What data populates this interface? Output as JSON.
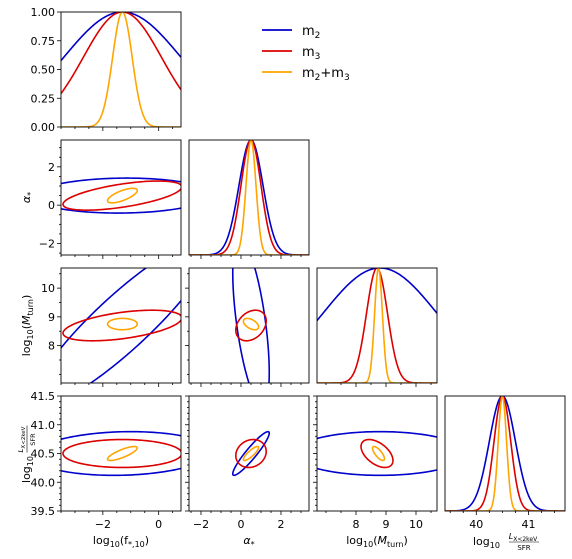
{
  "chart_data": {
    "type": "corner",
    "parameters": [
      {
        "key": "fstar",
        "label": "log10(f*,10)",
        "range": [
          -3.5,
          0.8
        ],
        "ticks": [
          -2,
          0
        ],
        "tick_labels": [
          "−2",
          "0"
        ]
      },
      {
        "key": "alpha",
        "label": "α*",
        "range": [
          -2.6,
          3.4
        ],
        "ticks": [
          -2,
          0,
          2
        ],
        "tick_labels": [
          "−2",
          "0",
          "2"
        ]
      },
      {
        "key": "mturn",
        "label": "log10(Mturn)",
        "range": [
          6.7,
          10.7
        ],
        "ticks": [
          8,
          9,
          10
        ],
        "tick_labels": [
          "8",
          "9",
          "10"
        ]
      },
      {
        "key": "lx",
        "label": "log10 LX<2keV/SFR",
        "range": [
          39.5,
          41.5
        ],
        "ticks": [
          39.5,
          40.0,
          40.5,
          41.0,
          41.5
        ],
        "tick_labels": [
          "39.5",
          "40.0",
          "40.5",
          "41.0",
          "41.5"
        ],
        "x_ticks": [
          40,
          41
        ],
        "x_tick_labels": [
          "40",
          "41"
        ],
        "x_range": [
          39.4,
          41.7
        ]
      }
    ],
    "diag_ylabels": {
      "ticks": [
        0.0,
        0.25,
        0.5,
        0.75,
        1.0
      ],
      "tick_labels": [
        "0.00",
        "0.25",
        "0.50",
        "0.75",
        "1.00"
      ]
    },
    "legend": {
      "position": "top-right",
      "entries": [
        {
          "name": "m2",
          "base": "m",
          "sub": "2"
        },
        {
          "name": "m3",
          "base": "m",
          "sub": "3"
        },
        {
          "name": "m2+m3",
          "base": "m",
          "sub": "2+m",
          "sub2": "3"
        }
      ]
    },
    "series": [
      {
        "name": "m2",
        "color": "#0000cc",
        "mean": {
          "fstar": -1.3,
          "alpha": 0.5,
          "mturn": 8.8,
          "lx": 40.5
        },
        "sigma": {
          "fstar": 2.1,
          "alpha": 0.6,
          "mturn": 1.9,
          "lx": 0.25
        },
        "corr": {
          "fstar-alpha": 0.05,
          "fstar-mturn": 0.9,
          "fstar-lx": 0.1,
          "alpha-mturn": -0.6,
          "alpha-lx": 0.93,
          "mturn-lx": 0.0
        }
      },
      {
        "name": "m3",
        "color": "#dd0000",
        "mean": {
          "fstar": -1.3,
          "alpha": 0.5,
          "mturn": 8.7,
          "lx": 40.5
        },
        "sigma": {
          "fstar": 1.4,
          "alpha": 0.5,
          "mturn": 0.35,
          "lx": 0.16
        },
        "corr": {
          "fstar-alpha": 0.6,
          "fstar-mturn": 0.5,
          "fstar-lx": 0.0,
          "alpha-mturn": 0.3,
          "alpha-lx": 0.15,
          "mturn-lx": -0.5
        }
      },
      {
        "name": "m2+m3",
        "color": "#ffa500",
        "mean": {
          "fstar": -1.3,
          "alpha": 0.5,
          "mturn": 8.75,
          "lx": 40.5
        },
        "sigma": {
          "fstar": 0.35,
          "alpha": 0.25,
          "mturn": 0.13,
          "lx": 0.08
        },
        "corr": {
          "fstar-alpha": 0.7,
          "fstar-mturn": 0.0,
          "fstar-lx": 0.8,
          "alpha-mturn": -0.5,
          "alpha-lx": 0.85,
          "mturn-lx": -0.75
        }
      }
    ]
  }
}
